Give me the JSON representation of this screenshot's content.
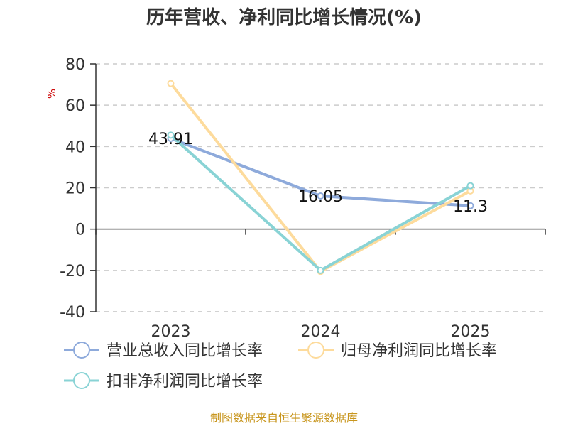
{
  "chart_data": {
    "type": "line",
    "title": "历年营收、净利同比增长情况(%)",
    "ylabel": "%",
    "categories": [
      "2023",
      "2024",
      "2025"
    ],
    "ylim": [
      -40,
      80
    ],
    "yticks": [
      80,
      60,
      40,
      20,
      0,
      -20,
      -40
    ],
    "grid": true,
    "legend_position": "bottom",
    "series": [
      {
        "name": "营业总收入同比增长率",
        "values": [
          43.91,
          16.05,
          11.3
        ],
        "color": "#8eaadb",
        "show_labels": true
      },
      {
        "name": "归母净利润同比增长率",
        "values": [
          70.5,
          -20.5,
          18.5
        ],
        "color": "#fddb9c",
        "show_labels": false
      },
      {
        "name": "扣非净利润同比增长率",
        "values": [
          45.5,
          -20,
          21
        ],
        "color": "#89d3d5",
        "show_labels": false
      }
    ]
  },
  "footer": {
    "source": "制图数据来自恒生聚源数据库"
  }
}
